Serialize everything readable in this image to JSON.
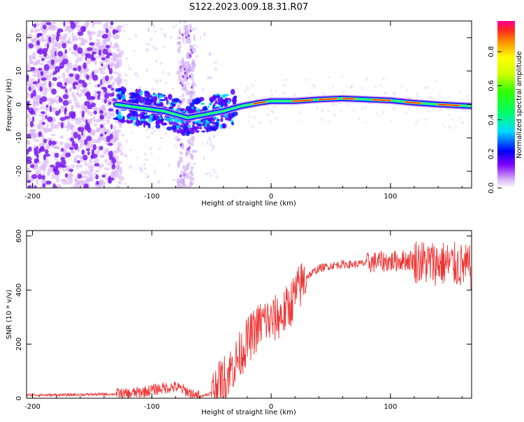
{
  "title": "S122.2023.009.18.31.R07",
  "chart_data": [
    {
      "type": "heatmap",
      "xlabel": "Height of straight line (km)",
      "ylabel": "Frequency (Hz)",
      "xlim": [
        -205,
        168
      ],
      "ylim": [
        -25,
        25
      ],
      "x_ticks": [
        -200,
        -100,
        0,
        100
      ],
      "y_ticks": [
        -20,
        -10,
        0,
        10,
        20
      ],
      "colorbar": {
        "label": "Normalized spectral amplitude",
        "range": [
          0,
          1
        ],
        "ticks": [
          "0.0",
          "0.2",
          "0.4",
          "0.6",
          "0.8"
        ]
      },
      "trace": {
        "x": [
          -130,
          -110,
          -90,
          -70,
          -55,
          -40,
          -25,
          -10,
          0,
          20,
          40,
          60,
          80,
          100,
          120,
          140,
          168
        ],
        "y": [
          0,
          -1,
          -2,
          -4,
          -3,
          -2,
          -0.5,
          0.5,
          1,
          1,
          1.5,
          1.8,
          1.5,
          1.2,
          0.5,
          0,
          -0.5
        ]
      }
    },
    {
      "type": "line",
      "xlabel": "Height of straight line (km)",
      "ylabel": "SNR (10 * v/v)",
      "xlim": [
        -205,
        168
      ],
      "ylim": [
        0,
        620
      ],
      "x_ticks": [
        -200,
        -100,
        0,
        100
      ],
      "y_ticks": [
        0,
        200,
        400,
        600
      ],
      "color": "#ee3333",
      "x": [
        -205,
        -180,
        -150,
        -120,
        -110,
        -100,
        -90,
        -80,
        -70,
        -65,
        -60,
        -55,
        -50,
        -45,
        -40,
        -35,
        -30,
        -25,
        -20,
        -15,
        -10,
        -5,
        0,
        5,
        10,
        15,
        20,
        25,
        30,
        40,
        50,
        60,
        70,
        80,
        90,
        100,
        110,
        120,
        130,
        140,
        150,
        160,
        168
      ],
      "y": [
        12,
        12,
        14,
        16,
        22,
        30,
        38,
        42,
        25,
        10,
        8,
        12,
        20,
        40,
        70,
        100,
        130,
        170,
        210,
        240,
        270,
        290,
        280,
        300,
        310,
        340,
        380,
        420,
        450,
        480,
        490,
        495,
        495,
        500,
        505,
        505,
        510,
        510,
        500,
        500,
        495,
        490,
        480
      ]
    }
  ]
}
